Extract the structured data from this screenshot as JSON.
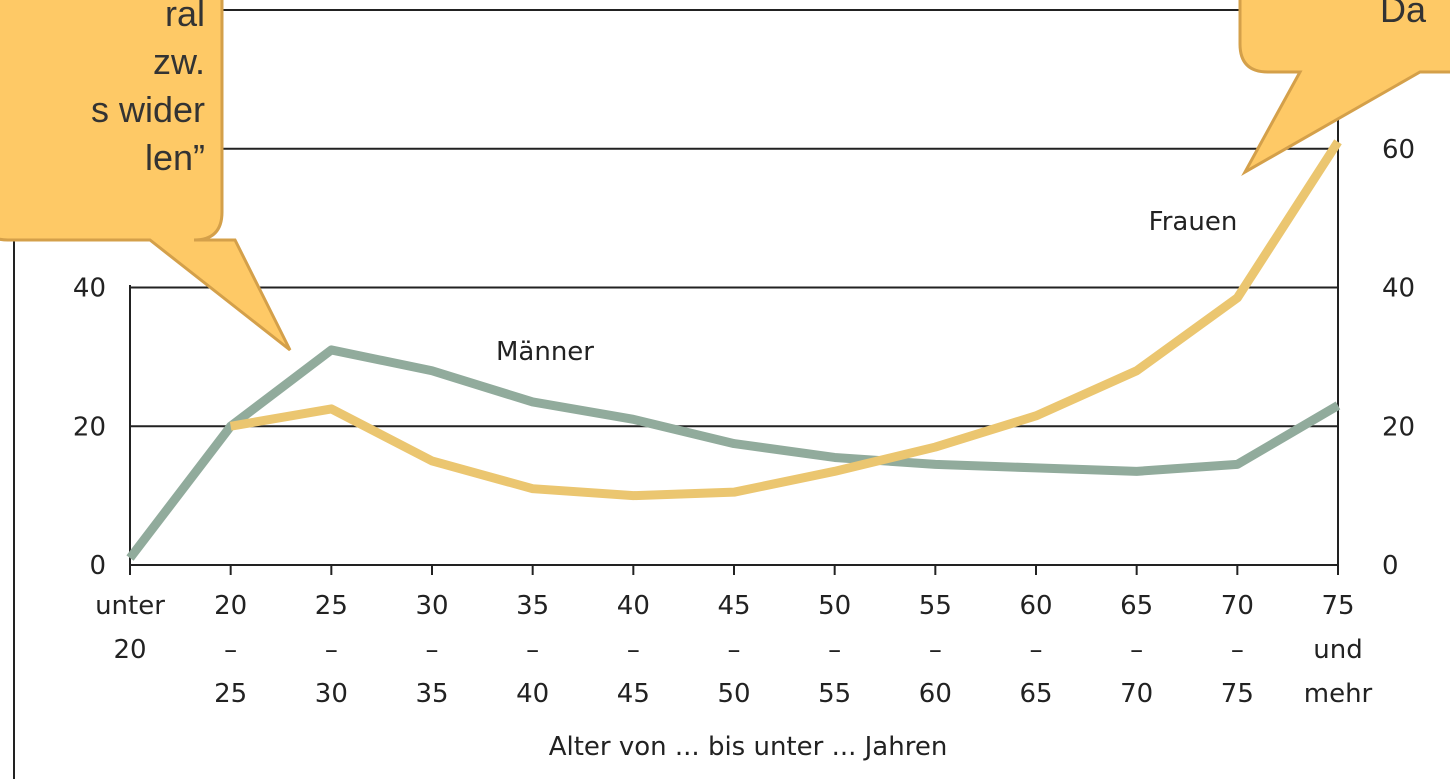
{
  "chart_data": {
    "type": "line",
    "x_label": "Alter von ... bis unter ... Jahren",
    "categories": [
      "unter\n20",
      "20\n–\n25",
      "25\n–\n30",
      "30\n–\n35",
      "35\n–\n40",
      "40\n–\n45",
      "45\n–\n50",
      "50\n–\n55",
      "55\n–\n60",
      "60\n–\n65",
      "65\n–\n70",
      "70\n–\n75",
      "75\nund\nmehr"
    ],
    "series": [
      {
        "name": "Männer",
        "color": "#91ab9c",
        "values": [
          1,
          20,
          31,
          28,
          23.5,
          21,
          17.5,
          15.5,
          14.5,
          14,
          13.5,
          14.5,
          23
        ]
      },
      {
        "name": "Frauen",
        "color": "#ebc670",
        "values": [
          null,
          20,
          22.5,
          15,
          11,
          10,
          10.5,
          13.5,
          17,
          21.5,
          28,
          38.5,
          61
        ]
      }
    ],
    "ylim": [
      0,
      80
    ],
    "yticks": [
      0,
      20,
      40,
      60,
      80
    ],
    "grid": true,
    "annotations": [
      {
        "lines": [
          "ral",
          "zw.",
          "s wider",
          "len”"
        ]
      },
      {
        "lines": [
          "Da"
        ]
      }
    ]
  }
}
